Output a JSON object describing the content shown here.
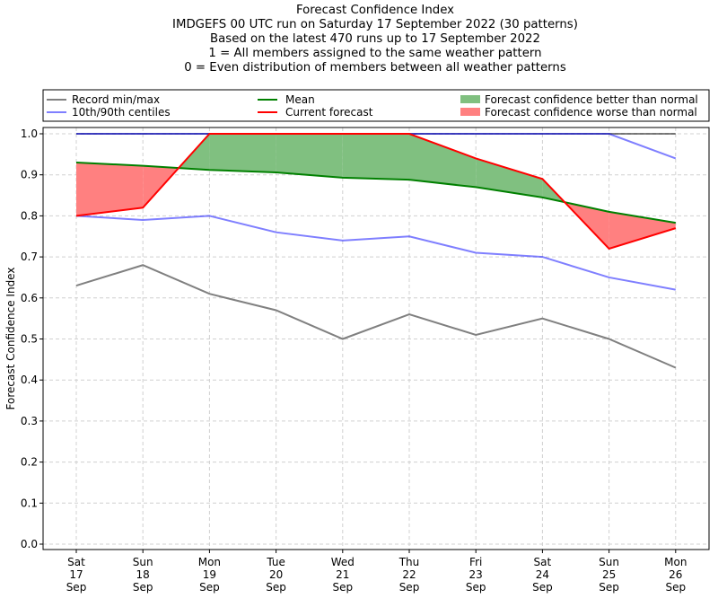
{
  "chart_data": {
    "type": "line",
    "title": "Forecast Confidence Index",
    "subtitle_lines": [
      "IMDGEFS 00 UTC run on Saturday 17 September 2022 (30 patterns)",
      "Based on the latest 470 runs up to 17 September 2022",
      "1 = All members assigned to the same weather pattern",
      "0 = Even distribution of members between all weather patterns"
    ],
    "ylabel": "Forecast Confidence Index",
    "xlabel": "",
    "ylim": [
      0,
      1
    ],
    "yticks": [
      "0.0",
      "0.1",
      "0.2",
      "0.3",
      "0.4",
      "0.5",
      "0.6",
      "0.7",
      "0.8",
      "0.9",
      "1.0"
    ],
    "categories": [
      [
        "Sat",
        "17",
        "Sep"
      ],
      [
        "Sun",
        "18",
        "Sep"
      ],
      [
        "Mon",
        "19",
        "Sep"
      ],
      [
        "Tue",
        "20",
        "Sep"
      ],
      [
        "Wed",
        "21",
        "Sep"
      ],
      [
        "Thu",
        "22",
        "Sep"
      ],
      [
        "Fri",
        "23",
        "Sep"
      ],
      [
        "Sat",
        "24",
        "Sep"
      ],
      [
        "Sun",
        "25",
        "Sep"
      ],
      [
        "Mon",
        "26",
        "Sep"
      ]
    ],
    "grid": true,
    "legend_placement": "top (above plot)",
    "legend": {
      "record": "Record min/max",
      "centiles": "10th/90th centiles",
      "mean": "Mean",
      "current": "Current forecast",
      "better": "Forecast confidence better than normal",
      "worse": "Forecast confidence worse than normal"
    },
    "series": {
      "record_max": [
        1.0,
        1.0,
        1.0,
        1.0,
        1.0,
        1.0,
        1.0,
        1.0,
        1.0,
        1.0
      ],
      "record_min": [
        0.63,
        0.68,
        0.61,
        0.57,
        0.5,
        0.56,
        0.51,
        0.55,
        0.5,
        0.43
      ],
      "p90": [
        1.0,
        1.0,
        1.0,
        1.0,
        1.0,
        1.0,
        1.0,
        1.0,
        1.0,
        0.94
      ],
      "p10": [
        0.8,
        0.79,
        0.8,
        0.76,
        0.74,
        0.75,
        0.71,
        0.7,
        0.65,
        0.62
      ],
      "mean": [
        0.93,
        0.922,
        0.912,
        0.906,
        0.893,
        0.888,
        0.87,
        0.845,
        0.81,
        0.783
      ],
      "current": [
        0.8,
        0.82,
        1.0,
        1.0,
        1.0,
        1.0,
        0.94,
        0.89,
        0.72,
        0.77
      ]
    },
    "colors": {
      "record": "#808080",
      "centiles": "#7f7fff",
      "mean": "#008000",
      "current": "#ff0000",
      "better": "#80c080",
      "worse": "#ff8080"
    }
  }
}
